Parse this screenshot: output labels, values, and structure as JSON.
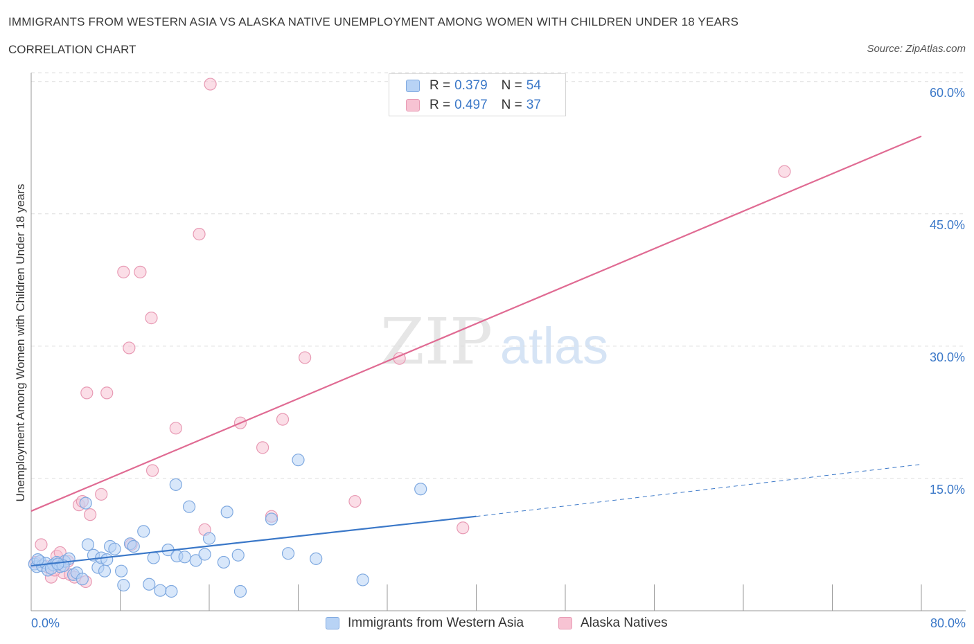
{
  "header": {
    "title": "IMMIGRANTS FROM WESTERN ASIA VS ALASKA NATIVE UNEMPLOYMENT AMONG WOMEN WITH CHILDREN UNDER 18 YEARS",
    "subtitle": "CORRELATION CHART",
    "source": "Source: ZipAtlas.com"
  },
  "colors": {
    "blue": "#3b78c8",
    "blue_fill": "#b8d3f5",
    "pink": "#e06b93",
    "pink_fill": "#f7c3d3",
    "grid": "#dddddd"
  },
  "legend": {
    "r_label": "R =",
    "n_label": "N =",
    "blue": {
      "r": "0.379",
      "n": "54"
    },
    "pink": {
      "r": "0.497",
      "n": "37"
    },
    "bottom_blue": "Immigrants from Western Asia",
    "bottom_pink": "Alaska Natives"
  },
  "chart_data": {
    "type": "scatter",
    "title": "IMMIGRANTS FROM WESTERN ASIA VS ALASKA NATIVE UNEMPLOYMENT AMONG WOMEN WITH CHILDREN UNDER 18 YEARS",
    "subtitle": "CORRELATION CHART",
    "xlabel": "",
    "ylabel": "Unemployment Among Women with Children Under 18 years",
    "xlim": [
      0,
      80
    ],
    "ylim": [
      0,
      61.0
    ],
    "x_tick_labels": [
      "0.0%",
      "80.0%"
    ],
    "y_ticks": [
      15,
      30,
      45,
      60
    ],
    "y_tick_labels": [
      "15.0%",
      "30.0%",
      "45.0%",
      "60.0%"
    ],
    "grid": true,
    "legend_position": "top-center",
    "series": [
      {
        "name": "Immigrants from Western Asia",
        "color": "#3b78c8",
        "points": [
          [
            0.3,
            5.3
          ],
          [
            0.5,
            5.0
          ],
          [
            0.8,
            5.6
          ],
          [
            1.0,
            5.1
          ],
          [
            1.3,
            5.4
          ],
          [
            1.5,
            4.6
          ],
          [
            2.0,
            5.2
          ],
          [
            2.3,
            5.5
          ],
          [
            2.6,
            5.0
          ],
          [
            3.0,
            5.6
          ],
          [
            3.4,
            5.9
          ],
          [
            3.8,
            4.1
          ],
          [
            4.1,
            4.3
          ],
          [
            4.6,
            3.6
          ],
          [
            5.1,
            7.5
          ],
          [
            5.6,
            6.3
          ],
          [
            6.0,
            4.9
          ],
          [
            6.3,
            6.0
          ],
          [
            6.6,
            4.5
          ],
          [
            6.8,
            5.8
          ],
          [
            7.1,
            7.3
          ],
          [
            7.5,
            7.0
          ],
          [
            8.1,
            4.5
          ],
          [
            8.3,
            2.9
          ],
          [
            8.9,
            7.6
          ],
          [
            10.1,
            9.0
          ],
          [
            10.6,
            3.0
          ],
          [
            11.0,
            6.0
          ],
          [
            11.6,
            2.3
          ],
          [
            12.3,
            6.9
          ],
          [
            12.6,
            2.2
          ],
          [
            13.1,
            6.2
          ],
          [
            13.8,
            6.1
          ],
          [
            14.2,
            11.8
          ],
          [
            14.8,
            5.7
          ],
          [
            15.6,
            6.4
          ],
          [
            16.0,
            8.2
          ],
          [
            17.3,
            5.5
          ],
          [
            17.6,
            11.2
          ],
          [
            18.6,
            6.3
          ],
          [
            18.8,
            2.2
          ],
          [
            21.6,
            10.4
          ],
          [
            23.1,
            6.5
          ],
          [
            24.0,
            17.1
          ],
          [
            25.6,
            5.9
          ],
          [
            29.8,
            3.5
          ],
          [
            35.0,
            13.8
          ],
          [
            13.0,
            14.3
          ],
          [
            4.9,
            12.2
          ],
          [
            2.9,
            5.1
          ],
          [
            0.6,
            5.8
          ],
          [
            1.8,
            4.8
          ],
          [
            9.2,
            7.3
          ],
          [
            2.4,
            5.3
          ]
        ],
        "trend": {
          "x0": 0,
          "y0": 5.1,
          "x1": 40,
          "y1": 10.7,
          "dash_to_x": 80,
          "dash_to_y": 16.6
        }
      },
      {
        "name": "Alaska Natives",
        "color": "#e06b93",
        "points": [
          [
            0.4,
            5.5
          ],
          [
            0.9,
            7.5
          ],
          [
            1.4,
            5.0
          ],
          [
            1.8,
            3.8
          ],
          [
            2.3,
            6.2
          ],
          [
            2.6,
            6.6
          ],
          [
            2.9,
            4.3
          ],
          [
            3.3,
            5.6
          ],
          [
            3.5,
            4.1
          ],
          [
            3.9,
            3.8
          ],
          [
            4.3,
            12.0
          ],
          [
            4.6,
            12.4
          ],
          [
            4.9,
            3.3
          ],
          [
            5.0,
            24.7
          ],
          [
            5.3,
            10.9
          ],
          [
            6.3,
            13.2
          ],
          [
            6.8,
            24.7
          ],
          [
            8.3,
            38.4
          ],
          [
            8.8,
            29.8
          ],
          [
            9.8,
            38.4
          ],
          [
            10.8,
            33.2
          ],
          [
            10.9,
            15.9
          ],
          [
            13.0,
            20.7
          ],
          [
            15.1,
            42.7
          ],
          [
            15.6,
            9.2
          ],
          [
            16.1,
            59.7
          ],
          [
            18.8,
            21.3
          ],
          [
            20.8,
            18.5
          ],
          [
            21.6,
            10.7
          ],
          [
            22.6,
            21.7
          ],
          [
            24.6,
            28.7
          ],
          [
            29.1,
            12.4
          ],
          [
            33.1,
            28.6
          ],
          [
            38.8,
            9.4
          ],
          [
            67.7,
            49.8
          ],
          [
            9.0,
            7.5
          ],
          [
            2.1,
            4.6
          ]
        ],
        "trend": {
          "x0": 0,
          "y0": 11.3,
          "x1": 80,
          "y1": 53.8
        }
      }
    ]
  }
}
